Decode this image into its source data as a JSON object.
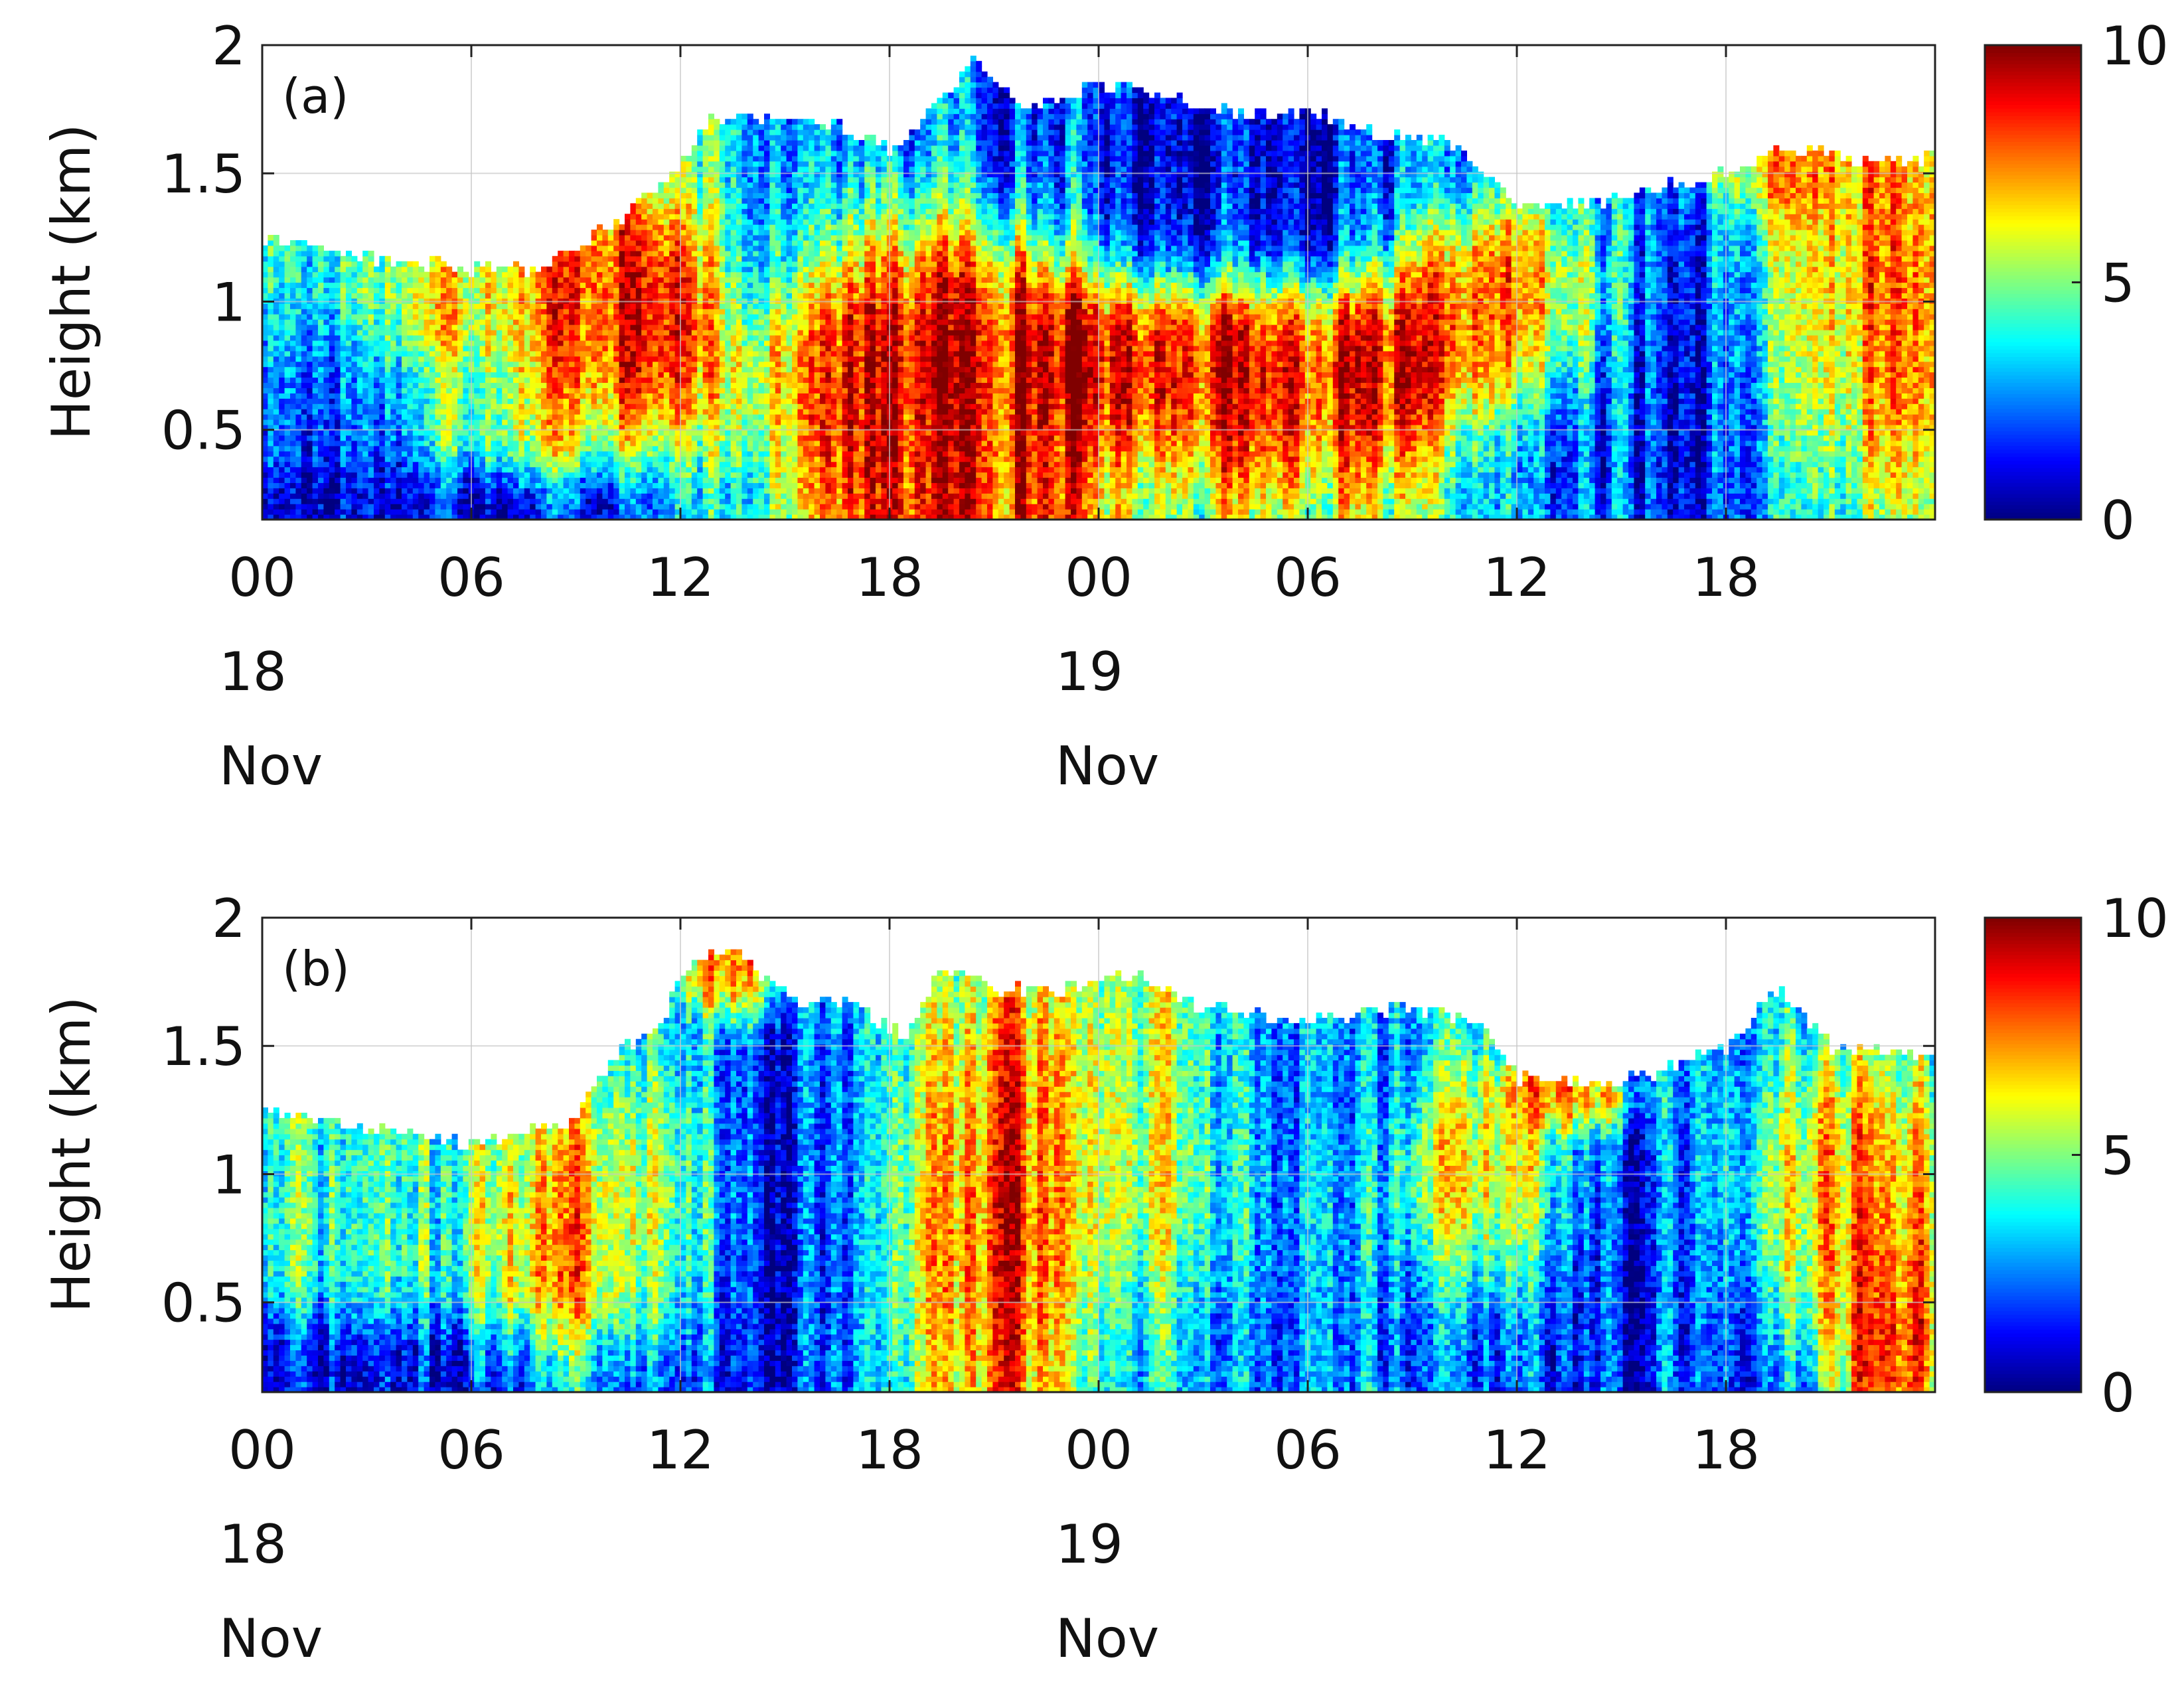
{
  "chart_data": [
    {
      "type": "heatmap",
      "panel_label": "(a)",
      "ylabel": "Height (km)",
      "y_ticks": [
        "0.5",
        "1",
        "1.5",
        "2"
      ],
      "y_tick_values": [
        0.5,
        1,
        1.5,
        2
      ],
      "ylim": [
        0.15,
        2
      ],
      "x_ticks": [
        {
          "hour": 0,
          "time": "00",
          "day": "18",
          "month": "Nov"
        },
        {
          "hour": 6,
          "time": "06"
        },
        {
          "hour": 12,
          "time": "12"
        },
        {
          "hour": 18,
          "time": "18"
        },
        {
          "hour": 24,
          "time": "00",
          "day": "19",
          "month": "Nov"
        },
        {
          "hour": 30,
          "time": "06"
        },
        {
          "hour": 36,
          "time": "12"
        },
        {
          "hour": 42,
          "time": "18"
        }
      ],
      "xlim_hours": [
        0,
        48
      ],
      "grid": true,
      "colorbar": {
        "min": 0,
        "max": 10,
        "ticks": [
          "0",
          "5",
          "10"
        ],
        "colormap": "jet"
      },
      "seed": 17,
      "cloud_top_km": [
        [
          0,
          1.25
        ],
        [
          4,
          1.15
        ],
        [
          8,
          1.12
        ],
        [
          10,
          1.3
        ],
        [
          11.5,
          1.45
        ],
        [
          12,
          1.55
        ],
        [
          13,
          1.72
        ],
        [
          16,
          1.72
        ],
        [
          18,
          1.6
        ],
        [
          19.5,
          1.78
        ],
        [
          20.5,
          1.95
        ],
        [
          22,
          1.75
        ],
        [
          24,
          1.85
        ],
        [
          26,
          1.8
        ],
        [
          28,
          1.72
        ],
        [
          30,
          1.75
        ],
        [
          32,
          1.65
        ],
        [
          34,
          1.62
        ],
        [
          35.5,
          1.45
        ],
        [
          36,
          1.38
        ],
        [
          38,
          1.38
        ],
        [
          40,
          1.45
        ],
        [
          42,
          1.5
        ],
        [
          44,
          1.6
        ],
        [
          46,
          1.55
        ],
        [
          48,
          1.55
        ]
      ],
      "features": [
        {
          "t": 0,
          "z": 0.2,
          "v": 0,
          "st": 6,
          "sz": 0.12
        },
        {
          "t": 3,
          "z": 0.45,
          "v": 2,
          "st": 3,
          "sz": 0.25
        },
        {
          "t": 7,
          "z": 0.9,
          "v": 8,
          "st": 2,
          "sz": 0.2
        },
        {
          "t": 7,
          "z": 0.5,
          "v": 8,
          "st": 1.5,
          "sz": 0.12
        },
        {
          "t": 10.2,
          "z": 0.95,
          "v": 10,
          "st": 1.2,
          "sz": 0.25
        },
        {
          "t": 18.5,
          "z": 0.4,
          "v": 9,
          "st": 2,
          "sz": 0.35
        },
        {
          "t": 20.5,
          "z": 0.6,
          "v": 10,
          "st": 2,
          "sz": 0.5
        },
        {
          "t": 25,
          "z": 0.75,
          "v": 10,
          "st": 5,
          "sz": 0.15
        },
        {
          "t": 29,
          "z": 0.7,
          "v": 9,
          "st": 2.5,
          "sz": 0.25
        },
        {
          "t": 24,
          "z": 1.6,
          "v": 1,
          "st": 4,
          "sz": 0.25
        },
        {
          "t": 29.5,
          "z": 1.45,
          "v": 0.5,
          "st": 2.5,
          "sz": 0.25
        },
        {
          "t": 35.5,
          "z": 1.0,
          "v": 9,
          "st": 1.8,
          "sz": 0.2
        },
        {
          "t": 41,
          "z": 0.65,
          "v": 1,
          "st": 3,
          "sz": 0.5
        },
        {
          "t": 46,
          "z": 0.9,
          "v": 9,
          "st": 2,
          "sz": 0.4
        },
        {
          "t": 44.5,
          "z": 1.5,
          "v": 8,
          "st": 1.5,
          "sz": 0.12
        }
      ]
    },
    {
      "type": "heatmap",
      "panel_label": "(b)",
      "ylabel": "Height (km)",
      "y_ticks": [
        "0.5",
        "1",
        "1.5",
        "2"
      ],
      "y_tick_values": [
        0.5,
        1,
        1.5,
        2
      ],
      "ylim": [
        0.15,
        2
      ],
      "x_ticks": [
        {
          "hour": 0,
          "time": "00",
          "day": "18",
          "month": "Nov"
        },
        {
          "hour": 6,
          "time": "06"
        },
        {
          "hour": 12,
          "time": "12"
        },
        {
          "hour": 18,
          "time": "18"
        },
        {
          "hour": 24,
          "time": "00",
          "day": "19",
          "month": "Nov"
        },
        {
          "hour": 30,
          "time": "06"
        },
        {
          "hour": 36,
          "time": "12"
        },
        {
          "hour": 42,
          "time": "18"
        }
      ],
      "xlim_hours": [
        0,
        48
      ],
      "grid": true,
      "colorbar": {
        "min": 0,
        "max": 10,
        "ticks": [
          "0",
          "5",
          "10"
        ],
        "colormap": "jet"
      },
      "seed": 71,
      "cloud_top_km": [
        [
          0,
          1.25
        ],
        [
          3,
          1.18
        ],
        [
          6,
          1.12
        ],
        [
          9,
          1.2
        ],
        [
          10,
          1.45
        ],
        [
          11.5,
          1.6
        ],
        [
          12,
          1.78
        ],
        [
          13.5,
          1.9
        ],
        [
          15,
          1.7
        ],
        [
          17,
          1.65
        ],
        [
          18.5,
          1.55
        ],
        [
          19.5,
          1.8
        ],
        [
          21,
          1.72
        ],
        [
          23,
          1.72
        ],
        [
          25,
          1.78
        ],
        [
          27,
          1.65
        ],
        [
          30,
          1.6
        ],
        [
          33,
          1.65
        ],
        [
          35,
          1.6
        ],
        [
          36,
          1.38
        ],
        [
          38,
          1.35
        ],
        [
          40,
          1.4
        ],
        [
          42,
          1.5
        ],
        [
          43.5,
          1.72
        ],
        [
          45,
          1.5
        ],
        [
          48,
          1.45
        ]
      ],
      "features": [
        {
          "t": 0,
          "z": 0.25,
          "v": 0,
          "st": 7,
          "sz": 0.15
        },
        {
          "t": 3,
          "z": 0.75,
          "v": 4,
          "st": 3,
          "sz": 0.25
        },
        {
          "t": 8.5,
          "z": 0.7,
          "v": 9,
          "st": 1.5,
          "sz": 0.3
        },
        {
          "t": 11,
          "z": 0.9,
          "v": 8,
          "st": 1.5,
          "sz": 0.35
        },
        {
          "t": 13.5,
          "z": 1.8,
          "v": 10,
          "st": 0.8,
          "sz": 0.12
        },
        {
          "t": 14.5,
          "z": 0.8,
          "v": 1,
          "st": 3,
          "sz": 0.6
        },
        {
          "t": 21,
          "z": 0.75,
          "v": 10,
          "st": 1.8,
          "sz": 0.5
        },
        {
          "t": 25,
          "z": 1.1,
          "v": 7,
          "st": 3,
          "sz": 0.35
        },
        {
          "t": 29,
          "z": 1.2,
          "v": 1,
          "st": 2.5,
          "sz": 0.3
        },
        {
          "t": 30,
          "z": 0.45,
          "v": 2,
          "st": 4,
          "sz": 0.3
        },
        {
          "t": 35,
          "z": 0.95,
          "v": 9,
          "st": 1.5,
          "sz": 0.25
        },
        {
          "t": 37.5,
          "z": 1.3,
          "v": 10,
          "st": 1,
          "sz": 0.08
        },
        {
          "t": 39.5,
          "z": 0.6,
          "v": 1,
          "st": 3,
          "sz": 0.5
        },
        {
          "t": 45,
          "z": 0.85,
          "v": 9,
          "st": 1.8,
          "sz": 0.3
        },
        {
          "t": 46.5,
          "z": 0.35,
          "v": 10,
          "st": 0.8,
          "sz": 0.2
        }
      ]
    }
  ]
}
